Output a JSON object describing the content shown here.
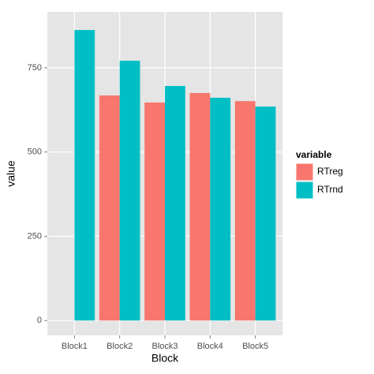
{
  "chart_data": {
    "type": "bar",
    "x_label": "Block",
    "y_label": "value",
    "categories": [
      "Block1",
      "Block2",
      "Block3",
      "Block4",
      "Block5"
    ],
    "series": [
      {
        "name": "RTreg",
        "color": "#f8766d",
        "values": [
          null,
          668,
          647,
          675,
          651
        ]
      },
      {
        "name": "RTrnd",
        "color": "#00bfc4",
        "values": [
          862,
          771,
          696,
          661,
          635
        ]
      }
    ],
    "legend_title": "variable",
    "legend_position": "right",
    "ylim": [
      -44,
      916
    ],
    "yticks": [
      0,
      250,
      500,
      750
    ],
    "grid": true
  }
}
